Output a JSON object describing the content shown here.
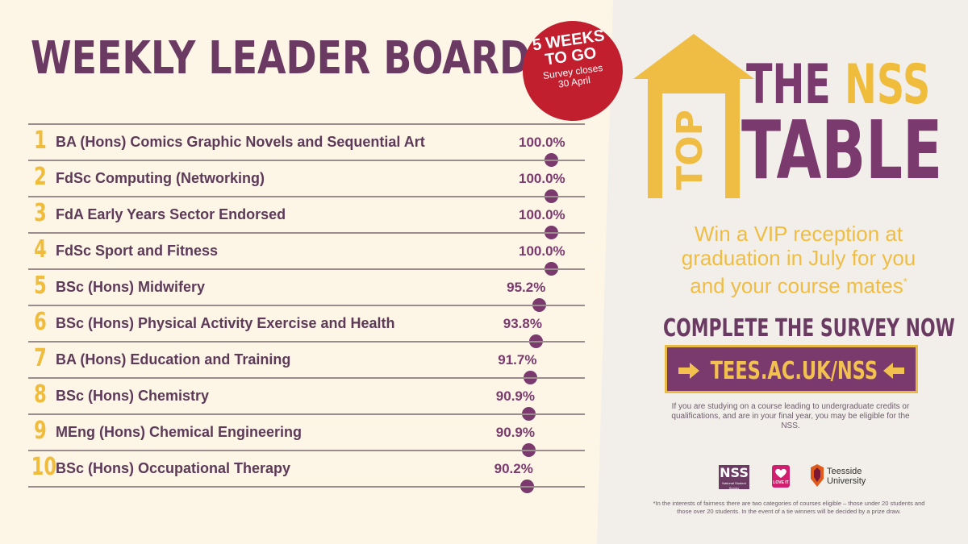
{
  "header": {
    "title": "WEEKLY LEADER BOARD"
  },
  "badge": {
    "line1": "5 WEEKS",
    "line2": "TO GO",
    "line3": "Survey closes",
    "line4": "30 April"
  },
  "leaderboard": {
    "rows": [
      {
        "rank": "1",
        "course": "BA (Hons) Comics Graphic Novels and Sequential Art",
        "percent": "100.0%"
      },
      {
        "rank": "2",
        "course": "FdSc Computing (Networking)",
        "percent": "100.0%"
      },
      {
        "rank": "3",
        "course": "FdA Early Years Sector Endorsed",
        "percent": "100.0%"
      },
      {
        "rank": "4",
        "course": "FdSc Sport and Fitness",
        "percent": "100.0%"
      },
      {
        "rank": "5",
        "course": "BSc (Hons) Midwifery",
        "percent": "95.2%"
      },
      {
        "rank": "6",
        "course": "BSc (Hons) Physical Activity Exercise and Health",
        "percent": "93.8%"
      },
      {
        "rank": "7",
        "course": "BA (Hons) Education and Training",
        "percent": "91.7%"
      },
      {
        "rank": "8",
        "course": "BSc (Hons) Chemistry",
        "percent": "90.9%"
      },
      {
        "rank": "9",
        "course": "MEng (Hons) Chemical Engineering",
        "percent": "90.9%"
      },
      {
        "rank": "10",
        "course": "BSc (Hons) Occupational Therapy",
        "percent": "90.2%"
      }
    ]
  },
  "campaign": {
    "house_word": "TOP",
    "the": "THE",
    "nss": "NSS",
    "table": "TABLE",
    "promo_line1": "Win a VIP reception at",
    "promo_line2": "graduation in July for you",
    "promo_line3": "and your course mates",
    "promo_mark": "*",
    "cta_title": "COMPLETE THE SURVEY NOW",
    "cta_url": "TEES.AC.UK/NSS",
    "eligibility": "If you are studying on a course leading to undergraduate credits or qualifications, and are in your final year, you may be eligible for the NSS."
  },
  "logos": {
    "nss_text": "NSS",
    "nss_sub": "National Student Survey",
    "love_text": "LOVE IT",
    "university_line1": "Teesside",
    "university_line2": "University"
  },
  "footnote": "*In the interests of fairness there are two categories of courses eligible – those under 20 students and those over 20 students. In the event of a tie winners will be decided by a prize draw.",
  "colors": {
    "purple": "#7a3a6e",
    "gold": "#f0bc3c",
    "badge_red": "#c21f2e",
    "cream": "#fdf5e6"
  }
}
